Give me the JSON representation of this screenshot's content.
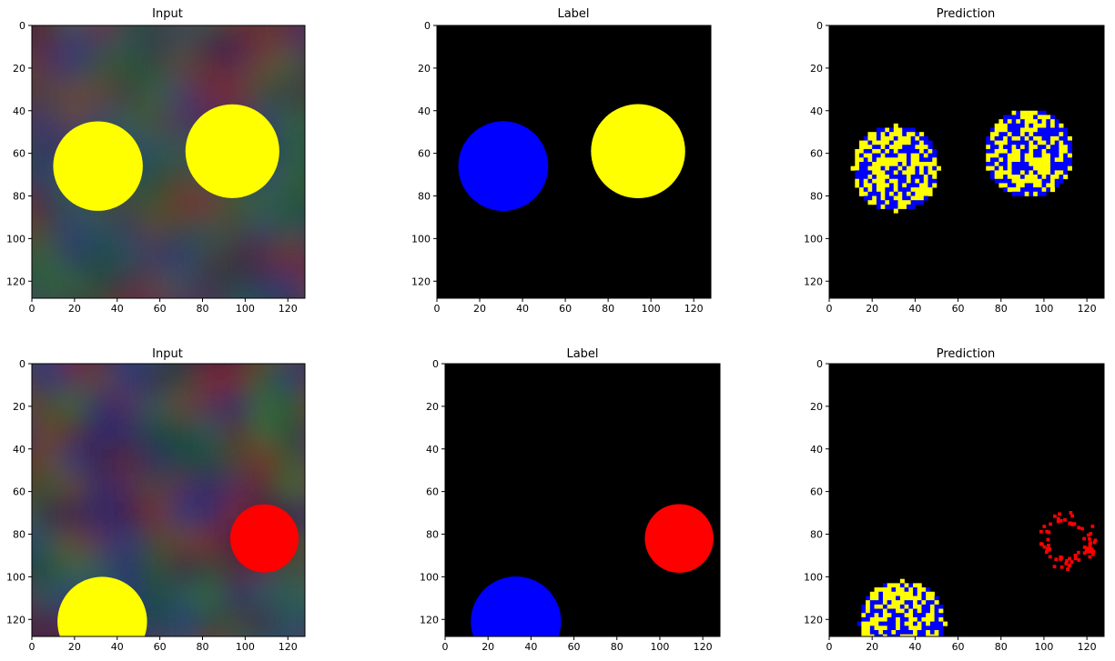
{
  "colors": {
    "background": "#000000",
    "blue": "#0000ff",
    "yellow": "#ffff00",
    "red": "#ff0000"
  },
  "chart_data": [
    {
      "type": "heatmap",
      "title": "Input",
      "extent": [
        0,
        128
      ],
      "xticks": [
        0,
        20,
        40,
        60,
        80,
        100,
        120
      ],
      "yticks": [
        0,
        20,
        40,
        60,
        80,
        100,
        120
      ],
      "background": "noise",
      "circles": [
        {
          "cx": 31,
          "cy": 66,
          "r": 21,
          "color": "yellow"
        },
        {
          "cx": 94,
          "cy": 59,
          "r": 22,
          "color": "yellow"
        }
      ]
    },
    {
      "type": "heatmap",
      "title": "Label",
      "extent": [
        0,
        128
      ],
      "xticks": [
        0,
        20,
        40,
        60,
        80,
        100,
        120
      ],
      "yticks": [
        0,
        20,
        40,
        60,
        80,
        100,
        120
      ],
      "background": "black",
      "circles": [
        {
          "cx": 31,
          "cy": 66,
          "r": 21,
          "color": "blue"
        },
        {
          "cx": 94,
          "cy": 59,
          "r": 22,
          "color": "yellow"
        }
      ]
    },
    {
      "type": "heatmap",
      "title": "Prediction",
      "extent": [
        0,
        128
      ],
      "xticks": [
        0,
        20,
        40,
        60,
        80,
        100,
        120
      ],
      "yticks": [
        0,
        20,
        40,
        60,
        80,
        100,
        120
      ],
      "background": "black",
      "circles": [
        {
          "cx": 30,
          "cy": 66,
          "r": 20,
          "color": "mixed"
        },
        {
          "cx": 92,
          "cy": 59,
          "r": 21,
          "color": "mixed"
        }
      ]
    },
    {
      "type": "heatmap",
      "title": "Input",
      "extent": [
        0,
        128
      ],
      "xticks": [
        0,
        20,
        40,
        60,
        80,
        100,
        120
      ],
      "yticks": [
        0,
        20,
        40,
        60,
        80,
        100,
        120
      ],
      "background": "noise",
      "circles": [
        {
          "cx": 109,
          "cy": 82,
          "r": 16,
          "color": "red"
        },
        {
          "cx": 33,
          "cy": 121,
          "r": 21,
          "color": "yellow"
        }
      ]
    },
    {
      "type": "heatmap",
      "title": "Label",
      "extent": [
        0,
        128
      ],
      "xticks": [
        0,
        20,
        40,
        60,
        80,
        100,
        120
      ],
      "yticks": [
        0,
        20,
        40,
        60,
        80,
        100,
        120
      ],
      "background": "black",
      "circles": [
        {
          "cx": 109,
          "cy": 82,
          "r": 16,
          "color": "red"
        },
        {
          "cx": 33,
          "cy": 121,
          "r": 21,
          "color": "blue"
        }
      ]
    },
    {
      "type": "heatmap",
      "title": "Prediction",
      "extent": [
        0,
        128
      ],
      "xticks": [
        0,
        20,
        40,
        60,
        80,
        100,
        120
      ],
      "yticks": [
        0,
        20,
        40,
        60,
        80,
        100,
        120
      ],
      "background": "black",
      "circles": [
        {
          "cx": 110,
          "cy": 82,
          "r": 14,
          "color": "sparse-red"
        },
        {
          "cx": 33,
          "cy": 121,
          "r": 20,
          "color": "mixed"
        }
      ]
    }
  ]
}
